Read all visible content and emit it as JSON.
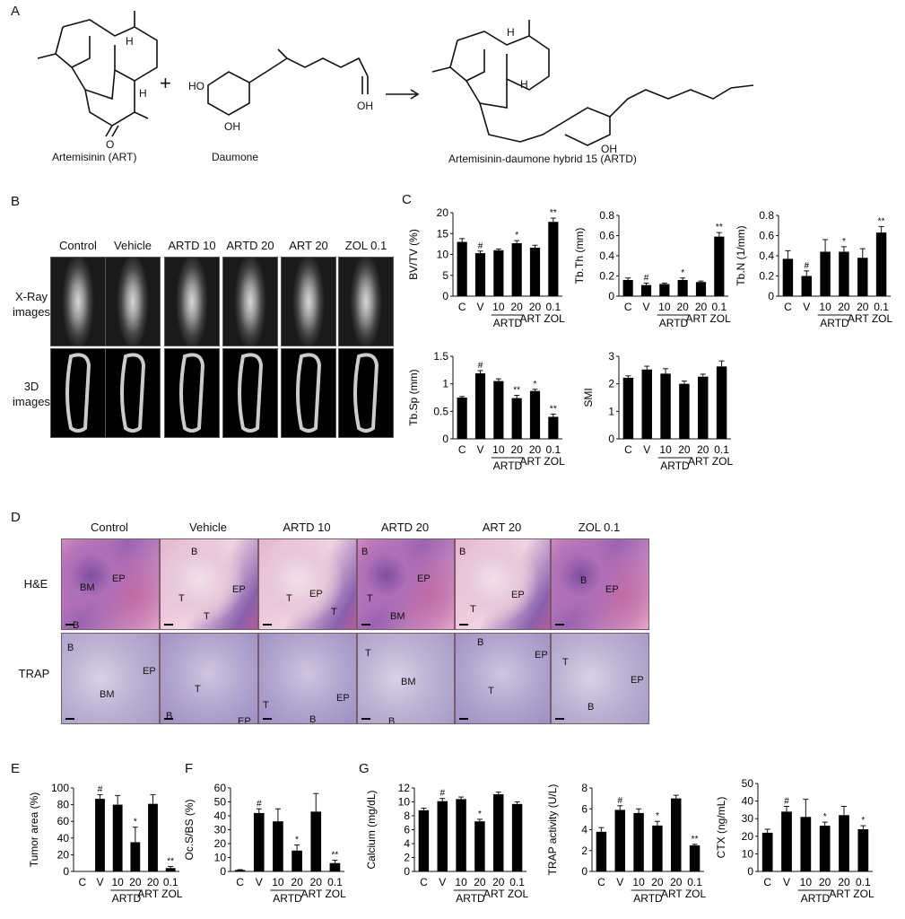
{
  "panels": {
    "A": "A",
    "B": "B",
    "C": "C",
    "D": "D",
    "E": "E",
    "F": "F",
    "G": "G"
  },
  "panelA": {
    "art": "Artemisinin (ART)",
    "daumone": "Daumone",
    "hybrid": "Artemisinin-daumone hybrid 15 (ARTD)",
    "plus": "+",
    "atoms": {
      "H": "H",
      "OH": "OH",
      "HO": "HO",
      "O": "O"
    }
  },
  "panelB": {
    "columns": [
      "Control",
      "Vehicle",
      "ARTD 10",
      "ARTD 20",
      "ART 20",
      "ZOL 0.1"
    ],
    "row1": [
      "X-Ray",
      "images"
    ],
    "row2": [
      "3D",
      "images"
    ]
  },
  "panelD": {
    "columns": [
      "Control",
      "Vehicle",
      "ARTD 10",
      "ARTD 20",
      "ART 20",
      "ZOL 0.1"
    ],
    "rows": [
      "H&E",
      "TRAP"
    ],
    "he_labels": [
      [
        "BM",
        "EP",
        "B"
      ],
      [
        "B",
        "T",
        "T",
        "EP"
      ],
      [
        "T",
        "EP",
        "T"
      ],
      [
        "B",
        "EP",
        "T",
        "BM"
      ],
      [
        "B",
        "T",
        "EP"
      ],
      [
        "B",
        "EP"
      ]
    ],
    "trap_labels": [
      [
        "B",
        "EP",
        "BM"
      ],
      [
        "T",
        "B",
        "EP"
      ],
      [
        "T",
        "B",
        "EP"
      ],
      [
        "T",
        "BM",
        "B"
      ],
      [
        "B",
        "EP",
        "T"
      ],
      [
        "T",
        "EP",
        "B"
      ]
    ]
  },
  "shared": {
    "cats": [
      "C",
      "V",
      "10",
      "20",
      "20",
      "0.1"
    ],
    "group_artd": "ARTD",
    "tail": "ART ZOL"
  },
  "chart_data": [
    {
      "id": "bvtv",
      "type": "bar",
      "ylabel": "BV/TV (%)",
      "ylim": [
        0,
        20
      ],
      "yticks": [
        0,
        5,
        10,
        15,
        20
      ],
      "values": [
        13,
        10.3,
        11,
        12.7,
        11.6,
        17.8
      ],
      "errors": [
        0.8,
        0.5,
        0.3,
        0.6,
        0.6,
        0.9
      ],
      "marks": [
        "",
        "#",
        "",
        "*",
        "",
        "**"
      ]
    },
    {
      "id": "tbth",
      "type": "bar",
      "ylabel": "Tb.Th (mm)",
      "ylim": [
        0,
        0.8
      ],
      "yticks": [
        0,
        0.2,
        0.4,
        0.6,
        0.8
      ],
      "values": [
        0.16,
        0.11,
        0.12,
        0.16,
        0.14,
        0.59
      ],
      "errors": [
        0.02,
        0.02,
        0.01,
        0.02,
        0.01,
        0.04
      ],
      "marks": [
        "",
        "#",
        "",
        "*",
        "",
        "**"
      ]
    },
    {
      "id": "tbn",
      "type": "bar",
      "ylabel": "Tb.N (1/mm)",
      "ylim": [
        0,
        0.8
      ],
      "yticks": [
        0,
        0.2,
        0.4,
        0.6,
        0.8
      ],
      "values": [
        0.37,
        0.2,
        0.44,
        0.44,
        0.38,
        0.63
      ],
      "errors": [
        0.08,
        0.05,
        0.12,
        0.05,
        0.09,
        0.06
      ],
      "marks": [
        "",
        "#",
        "",
        "*",
        "",
        "**"
      ]
    },
    {
      "id": "tbsp",
      "type": "bar",
      "ylabel": "Tb.Sp (mm)",
      "ylim": [
        0,
        1.5
      ],
      "yticks": [
        0,
        0.5,
        1.0,
        1.5
      ],
      "values": [
        0.75,
        1.19,
        1.05,
        0.74,
        0.87,
        0.4
      ],
      "errors": [
        0.02,
        0.05,
        0.04,
        0.05,
        0.03,
        0.05
      ],
      "marks": [
        "",
        "#",
        "",
        "**",
        "*",
        "**"
      ]
    },
    {
      "id": "smi",
      "type": "bar",
      "ylabel": "SMI",
      "ylim": [
        0,
        3
      ],
      "yticks": [
        0,
        1,
        2,
        3
      ],
      "values": [
        2.22,
        2.52,
        2.37,
        2.0,
        2.26,
        2.63
      ],
      "errors": [
        0.07,
        0.12,
        0.18,
        0.1,
        0.09,
        0.2
      ],
      "marks": [
        "",
        "",
        "",
        "",
        "",
        ""
      ]
    },
    {
      "id": "tumor",
      "type": "bar",
      "ylabel": "Tumor area (%)",
      "ylim": [
        0,
        100
      ],
      "yticks": [
        0,
        20,
        40,
        60,
        80,
        100
      ],
      "values": [
        0,
        87,
        80,
        35,
        81,
        4
      ],
      "errors": [
        0,
        5,
        11,
        18,
        11,
        2
      ],
      "marks": [
        "",
        "#",
        "",
        "*",
        "",
        "**"
      ]
    },
    {
      "id": "ocs",
      "type": "bar",
      "ylabel": "Oc.S/BS (%)",
      "ylim": [
        0,
        60
      ],
      "yticks": [
        0,
        10,
        20,
        30,
        40,
        50,
        60
      ],
      "values": [
        1,
        42,
        36,
        15,
        43,
        6
      ],
      "errors": [
        0.3,
        3,
        9,
        4,
        13,
        2
      ],
      "marks": [
        "",
        "#",
        "",
        "*",
        "",
        "**"
      ]
    },
    {
      "id": "calcium",
      "type": "bar",
      "ylabel": "Calcium (mg/dL)",
      "ylim": [
        0,
        12
      ],
      "yticks": [
        0,
        2,
        4,
        6,
        8,
        10,
        12
      ],
      "values": [
        8.8,
        10.1,
        10.4,
        7.2,
        11.1,
        9.7
      ],
      "errors": [
        0.3,
        0.4,
        0.3,
        0.3,
        0.3,
        0.3
      ],
      "marks": [
        "",
        "#",
        "",
        "*",
        "",
        ""
      ]
    },
    {
      "id": "trap",
      "type": "bar",
      "ylabel": "TRAP activity (U/L)",
      "ylim": [
        0,
        8
      ],
      "yticks": [
        0,
        2,
        4,
        6,
        8
      ],
      "values": [
        3.8,
        5.9,
        5.6,
        4.4,
        7.0,
        2.5
      ],
      "errors": [
        0.4,
        0.4,
        0.4,
        0.4,
        0.3,
        0.1
      ],
      "marks": [
        "",
        "#",
        "",
        "*",
        "",
        "**"
      ]
    },
    {
      "id": "ctx",
      "type": "bar",
      "ylabel": "CTX (ng/mL)",
      "ylim": [
        0,
        50
      ],
      "yticks": [
        0,
        10,
        20,
        30,
        40,
        50
      ],
      "values": [
        22,
        34,
        31,
        26,
        32,
        24
      ],
      "errors": [
        2,
        3,
        10,
        2,
        5,
        2
      ],
      "marks": [
        "",
        "#",
        "",
        "*",
        "",
        "*"
      ]
    }
  ]
}
